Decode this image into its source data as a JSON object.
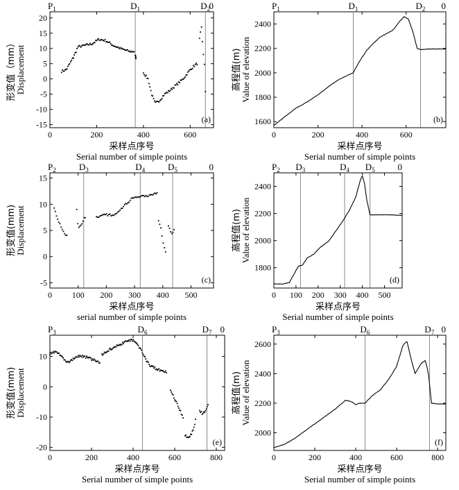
{
  "chart_data": [
    {
      "id": "a",
      "type": "scatter",
      "panel_label": "(a)",
      "ylabel_cn": "形变值（mm）",
      "ylabel_en": "Displacement",
      "xlabel_cn": "采样点序号",
      "xlabel_en": "Serial number of simple points",
      "xlim": [
        0,
        700
      ],
      "ylim": [
        -16,
        22
      ],
      "xticks": [
        0,
        200,
        400,
        600
      ],
      "yticks": [
        -15,
        -10,
        -5,
        0,
        5,
        10,
        15,
        20
      ],
      "markers": [
        {
          "text": "P",
          "sub": "1",
          "x": 0,
          "line": false
        },
        {
          "text": "D",
          "sub": "1",
          "x": 365,
          "line": true
        },
        {
          "text": "D",
          "sub": "2",
          "x": 665,
          "line": true
        },
        {
          "text": "0",
          "sub": "",
          "x": 700,
          "line": false
        }
      ],
      "segments": [
        {
          "x0": 50,
          "x1": 100,
          "pts": [
            [
              50,
              2.5
            ],
            [
              70,
              3
            ],
            [
              100,
              7
            ]
          ]
        },
        {
          "x0": 100,
          "x1": 360,
          "pts": [
            [
              100,
              7
            ],
            [
              120,
              10.5
            ],
            [
              150,
              11
            ],
            [
              180,
              11.5
            ],
            [
              210,
              13
            ],
            [
              240,
              12.5
            ],
            [
              270,
              11
            ],
            [
              300,
              10
            ],
            [
              320,
              9.5
            ],
            [
              340,
              9
            ],
            [
              360,
              9
            ]
          ]
        },
        {
          "x0": 365,
          "x1": 368,
          "pts": [
            [
              365,
              7.5
            ],
            [
              368,
              7
            ]
          ]
        },
        {
          "x0": 400,
          "x1": 630,
          "pts": [
            [
              400,
              2
            ],
            [
              420,
              0
            ],
            [
              435,
              -5
            ],
            [
              450,
              -8
            ],
            [
              470,
              -7
            ],
            [
              490,
              -5
            ],
            [
              510,
              -4
            ],
            [
              540,
              -2
            ],
            [
              570,
              0
            ],
            [
              600,
              3
            ],
            [
              620,
              4.5
            ],
            [
              630,
              5
            ]
          ]
        },
        {
          "x0": 640,
          "x1": 665,
          "pts": [
            [
              640,
              13
            ],
            [
              648,
              17
            ],
            [
              655,
              9
            ],
            [
              662,
              4
            ],
            [
              665,
              -4
            ]
          ]
        }
      ]
    },
    {
      "id": "b",
      "type": "line",
      "panel_label": "(b)",
      "ylabel_cn": "高程值(m)",
      "ylabel_en": "Value of elevation",
      "xlabel_cn": "采样点序号",
      "xlabel_en": "Serial number of simple points",
      "xlim": [
        0,
        780
      ],
      "ylim": [
        1550,
        2500
      ],
      "xticks": [
        0,
        200,
        400,
        600
      ],
      "yticks": [
        1600,
        1800,
        2000,
        2200,
        2400
      ],
      "markers": [
        {
          "text": "P",
          "sub": "1",
          "x": 0,
          "line": false
        },
        {
          "text": "D",
          "sub": "1",
          "x": 360,
          "line": true
        },
        {
          "text": "D",
          "sub": "2",
          "x": 665,
          "line": true
        },
        {
          "text": "0",
          "sub": "",
          "x": 780,
          "line": false
        }
      ],
      "pts": [
        [
          0,
          1570
        ],
        [
          50,
          1640
        ],
        [
          100,
          1710
        ],
        [
          150,
          1760
        ],
        [
          200,
          1820
        ],
        [
          250,
          1890
        ],
        [
          300,
          1950
        ],
        [
          360,
          2000
        ],
        [
          390,
          2100
        ],
        [
          420,
          2180
        ],
        [
          450,
          2240
        ],
        [
          480,
          2290
        ],
        [
          510,
          2320
        ],
        [
          540,
          2350
        ],
        [
          570,
          2420
        ],
        [
          590,
          2460
        ],
        [
          610,
          2440
        ],
        [
          630,
          2340
        ],
        [
          650,
          2200
        ],
        [
          665,
          2190
        ],
        [
          700,
          2195
        ],
        [
          780,
          2195
        ]
      ]
    },
    {
      "id": "c",
      "type": "scatter",
      "panel_label": "(c)",
      "ylabel_cn": "形变值(mm)",
      "ylabel_en": "Displacement",
      "xlabel_cn": "采样点序号",
      "xlabel_en": "serial number of simple points",
      "xlim": [
        0,
        580
      ],
      "ylim": [
        -6,
        16
      ],
      "xticks": [
        0,
        100,
        200,
        300,
        400,
        500
      ],
      "yticks": [
        -5,
        0,
        5,
        10,
        15
      ],
      "markers": [
        {
          "text": "P",
          "sub": "2",
          "x": 0,
          "line": false
        },
        {
          "text": "D",
          "sub": "3",
          "x": 120,
          "line": true
        },
        {
          "text": "D",
          "sub": "4",
          "x": 320,
          "line": true
        },
        {
          "text": "D",
          "sub": "5",
          "x": 435,
          "line": true
        },
        {
          "text": "0",
          "sub": "",
          "x": 580,
          "line": false
        }
      ],
      "segments": [
        {
          "x0": 15,
          "x1": 60,
          "pts": [
            [
              15,
              9.5
            ],
            [
              25,
              7.5
            ],
            [
              40,
              5.5
            ],
            [
              50,
              4.5
            ],
            [
              60,
              4
            ]
          ]
        },
        {
          "x0": 95,
          "x1": 125,
          "pts": [
            [
              95,
              9
            ],
            [
              100,
              5.5
            ],
            [
              110,
              6
            ],
            [
              118,
              7
            ],
            [
              125,
              7.5
            ]
          ]
        },
        {
          "x0": 165,
          "x1": 380,
          "pts": [
            [
              165,
              7.5
            ],
            [
              200,
              8
            ],
            [
              230,
              8
            ],
            [
              260,
              9.5
            ],
            [
              290,
              11
            ],
            [
              320,
              11.5
            ],
            [
              350,
              11.5
            ],
            [
              370,
              12
            ],
            [
              380,
              12
            ]
          ]
        },
        {
          "x0": 385,
          "x1": 410,
          "pts": [
            [
              385,
              7
            ],
            [
              395,
              5
            ],
            [
              403,
              2
            ],
            [
              410,
              1
            ]
          ]
        },
        {
          "x0": 420,
          "x1": 440,
          "pts": [
            [
              420,
              6
            ],
            [
              430,
              4.5
            ],
            [
              440,
              5
            ]
          ]
        }
      ]
    },
    {
      "id": "d",
      "type": "line",
      "panel_label": "(d)",
      "ylabel_cn": "高程值(m)",
      "ylabel_en": "Value of elevation",
      "xlabel_cn": "采样点序号",
      "xlabel_en": "Serial number of simple points",
      "xlim": [
        0,
        580
      ],
      "ylim": [
        1650,
        2500
      ],
      "xticks": [
        0,
        100,
        200,
        300,
        400,
        500
      ],
      "yticks": [
        1800,
        2000,
        2200,
        2400
      ],
      "markers": [
        {
          "text": "P",
          "sub": "2",
          "x": 0,
          "line": false
        },
        {
          "text": "D",
          "sub": "3",
          "x": 120,
          "line": true
        },
        {
          "text": "D",
          "sub": "4",
          "x": 320,
          "line": true
        },
        {
          "text": "D",
          "sub": "5",
          "x": 435,
          "line": true
        },
        {
          "text": "0",
          "sub": "",
          "x": 580,
          "line": false
        }
      ],
      "pts": [
        [
          0,
          1680
        ],
        [
          40,
          1680
        ],
        [
          70,
          1690
        ],
        [
          90,
          1750
        ],
        [
          110,
          1810
        ],
        [
          130,
          1820
        ],
        [
          150,
          1870
        ],
        [
          180,
          1900
        ],
        [
          210,
          1950
        ],
        [
          250,
          2000
        ],
        [
          280,
          2070
        ],
        [
          310,
          2140
        ],
        [
          340,
          2220
        ],
        [
          370,
          2320
        ],
        [
          390,
          2440
        ],
        [
          400,
          2480
        ],
        [
          410,
          2420
        ],
        [
          420,
          2300
        ],
        [
          435,
          2190
        ],
        [
          460,
          2190
        ],
        [
          520,
          2190
        ],
        [
          580,
          2185
        ]
      ]
    },
    {
      "id": "e",
      "type": "scatter",
      "panel_label": "(e)",
      "ylabel_cn": "形变值(mm)",
      "ylabel_en": "Displacement",
      "xlabel_cn": "采样点序号",
      "xlabel_en": "Serial number of simple points",
      "xlim": [
        0,
        840
      ],
      "ylim": [
        -21,
        17
      ],
      "xticks": [
        0,
        200,
        400,
        600,
        800
      ],
      "yticks": [
        -20,
        -10,
        0,
        10
      ],
      "markers": [
        {
          "text": "P",
          "sub": "3",
          "x": 0,
          "line": false
        },
        {
          "text": "D",
          "sub": "6",
          "x": 445,
          "line": true
        },
        {
          "text": "D",
          "sub": "7",
          "x": 755,
          "line": true
        },
        {
          "text": "0",
          "sub": "",
          "x": 840,
          "line": false
        }
      ],
      "segments": [
        {
          "x0": 0,
          "x1": 240,
          "pts": [
            [
              0,
              11
            ],
            [
              30,
              11.5
            ],
            [
              60,
              10
            ],
            [
              80,
              8
            ],
            [
              100,
              8.5
            ],
            [
              130,
              10
            ],
            [
              160,
              10
            ],
            [
              190,
              9.5
            ],
            [
              220,
              8.5
            ],
            [
              240,
              8
            ]
          ]
        },
        {
          "x0": 250,
          "x1": 560,
          "pts": [
            [
              250,
              10.5
            ],
            [
              280,
              12
            ],
            [
              310,
              13
            ],
            [
              340,
              14
            ],
            [
              370,
              15
            ],
            [
              400,
              15.5
            ],
            [
              420,
              14
            ],
            [
              440,
              12
            ],
            [
              460,
              9
            ],
            [
              480,
              7
            ],
            [
              510,
              6
            ],
            [
              540,
              5
            ],
            [
              560,
              5
            ]
          ]
        },
        {
          "x0": 580,
          "x1": 640,
          "pts": [
            [
              580,
              -1
            ],
            [
              600,
              -4
            ],
            [
              620,
              -7
            ],
            [
              640,
              -10
            ]
          ]
        },
        {
          "x0": 650,
          "x1": 700,
          "pts": [
            [
              650,
              -16
            ],
            [
              670,
              -17
            ],
            [
              690,
              -14
            ],
            [
              700,
              -11
            ]
          ]
        },
        {
          "x0": 720,
          "x1": 760,
          "pts": [
            [
              720,
              -8
            ],
            [
              735,
              -9
            ],
            [
              750,
              -8
            ],
            [
              760,
              -6
            ]
          ]
        }
      ]
    },
    {
      "id": "f",
      "type": "line",
      "panel_label": "(f)",
      "ylabel_cn": "高程值(m)",
      "ylabel_en": "Value of elevation",
      "xlabel_cn": "采样点序号",
      "xlabel_en": "Serial number of simple points",
      "xlim": [
        0,
        840
      ],
      "ylim": [
        1880,
        2660
      ],
      "xticks": [
        0,
        200,
        400,
        600,
        800
      ],
      "yticks": [
        2000,
        2200,
        2400,
        2600
      ],
      "markers": [
        {
          "text": "P",
          "sub": "3",
          "x": 0,
          "line": false
        },
        {
          "text": "D",
          "sub": "6",
          "x": 445,
          "line": true
        },
        {
          "text": "D",
          "sub": "7",
          "x": 760,
          "line": true
        },
        {
          "text": "0",
          "sub": "",
          "x": 840,
          "line": false
        }
      ],
      "pts": [
        [
          0,
          1900
        ],
        [
          50,
          1920
        ],
        [
          100,
          1960
        ],
        [
          150,
          2010
        ],
        [
          200,
          2060
        ],
        [
          250,
          2110
        ],
        [
          300,
          2160
        ],
        [
          350,
          2220
        ],
        [
          380,
          2210
        ],
        [
          400,
          2190
        ],
        [
          420,
          2200
        ],
        [
          445,
          2200
        ],
        [
          480,
          2250
        ],
        [
          520,
          2290
        ],
        [
          560,
          2360
        ],
        [
          600,
          2450
        ],
        [
          630,
          2590
        ],
        [
          650,
          2620
        ],
        [
          670,
          2500
        ],
        [
          690,
          2400
        ],
        [
          720,
          2470
        ],
        [
          740,
          2490
        ],
        [
          755,
          2400
        ],
        [
          770,
          2200
        ],
        [
          800,
          2195
        ],
        [
          840,
          2195
        ]
      ]
    }
  ]
}
